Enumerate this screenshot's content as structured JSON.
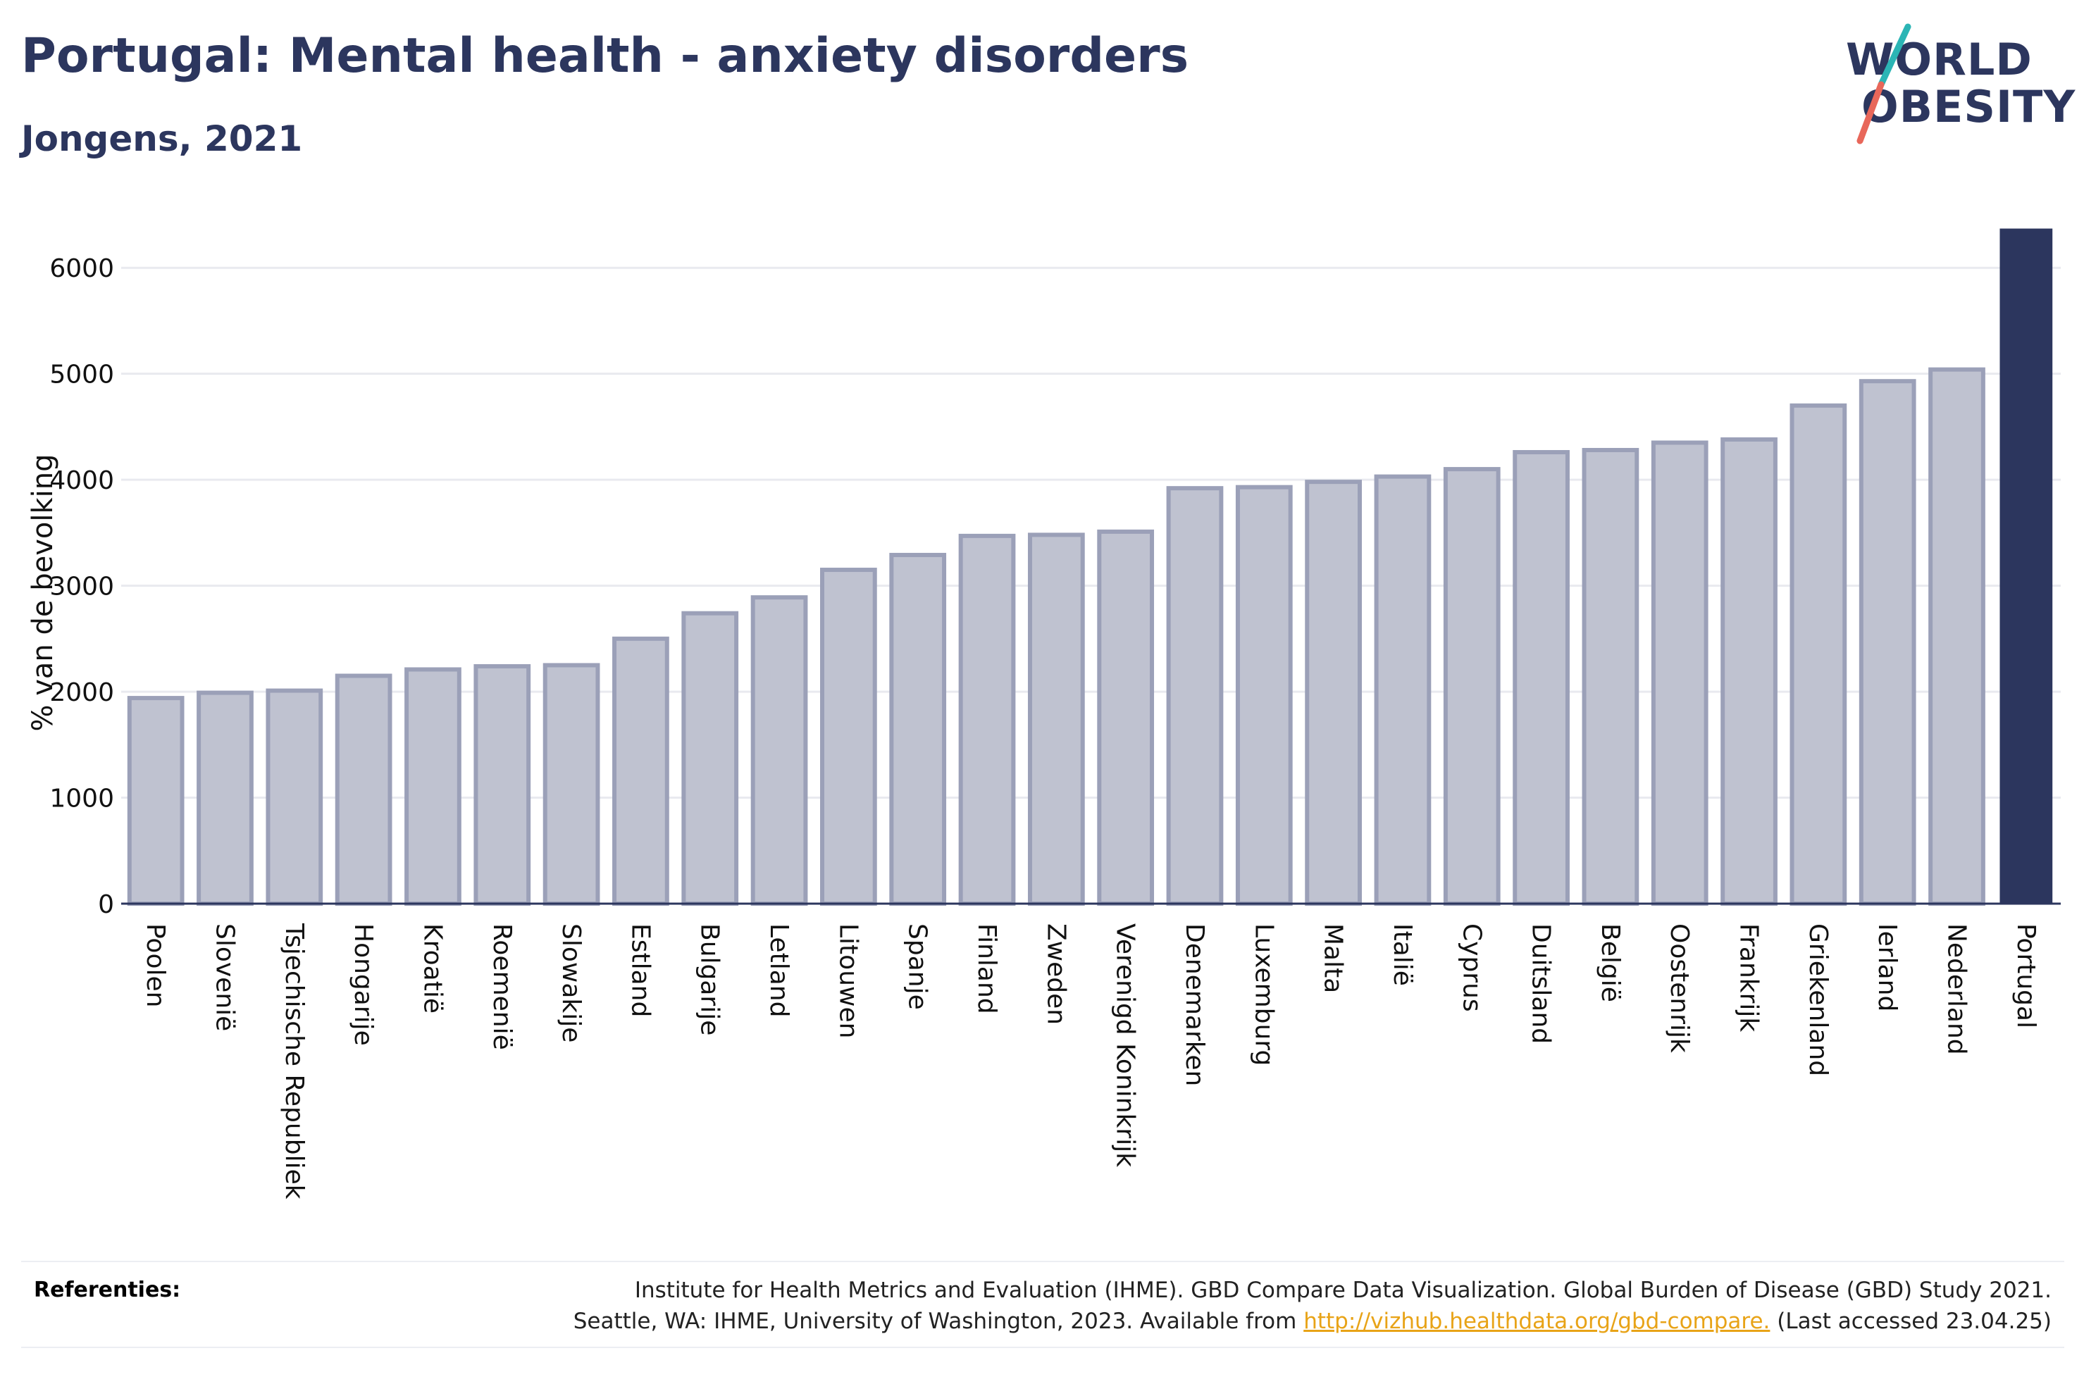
{
  "header": {
    "title": "Portugal: Mental health - anxiety disorders",
    "subtitle": "Jongens, 2021"
  },
  "logo": {
    "line1": "WORLD",
    "line2": "OBESITY",
    "colors": {
      "text": "#2c365e",
      "slash_top": "#2bb5b5",
      "slash_bottom": "#e8675a"
    }
  },
  "chart_data": {
    "type": "bar",
    "ylabel": "% van de bevolking",
    "xlabel": "",
    "ylim": [
      0,
      6400
    ],
    "yticks": [
      0,
      1000,
      2000,
      3000,
      4000,
      5000,
      6000
    ],
    "grid": true,
    "categories": [
      "Poolen",
      "Slovenië",
      "Tsjechische Republiek",
      "Hongarije",
      "Kroatië",
      "Roemenië",
      "Slowakije",
      "Estland",
      "Bulgarije",
      "Letland",
      "Litouwen",
      "Spanje",
      "Finland",
      "Zweden",
      "Verenigd Koninkrijk",
      "Denemarken",
      "Luxemburg",
      "Malta",
      "Italië",
      "Cyprus",
      "Duitsland",
      "België",
      "Oostenrijk",
      "Frankrijk",
      "Griekenland",
      "Ierland",
      "Nederland",
      "Portugal"
    ],
    "values": [
      1940,
      1990,
      2010,
      2150,
      2210,
      2240,
      2250,
      2500,
      2740,
      2890,
      3150,
      3290,
      3470,
      3480,
      3510,
      3920,
      3930,
      3980,
      4030,
      4100,
      4260,
      4280,
      4350,
      4380,
      4700,
      4930,
      5040,
      6370
    ],
    "highlight": "Portugal",
    "colors": {
      "bar": "#bfc2d0",
      "bar_edge": "#9ba0b8",
      "highlight": "#2c365e",
      "grid": "#e9eaef"
    }
  },
  "references": {
    "label": "Referenties:",
    "line1": "Institute for Health Metrics and Evaluation (IHME). GBD Compare Data Visualization. Global Burden of Disease (GBD) Study 2021.",
    "line2_prefix": "Seattle, WA: IHME, University of Washington, 2023. Available from ",
    "link": "http://vizhub.healthdata.org/gbd-compare.",
    "line2_suffix": " (Last accessed 23.04.25)"
  }
}
